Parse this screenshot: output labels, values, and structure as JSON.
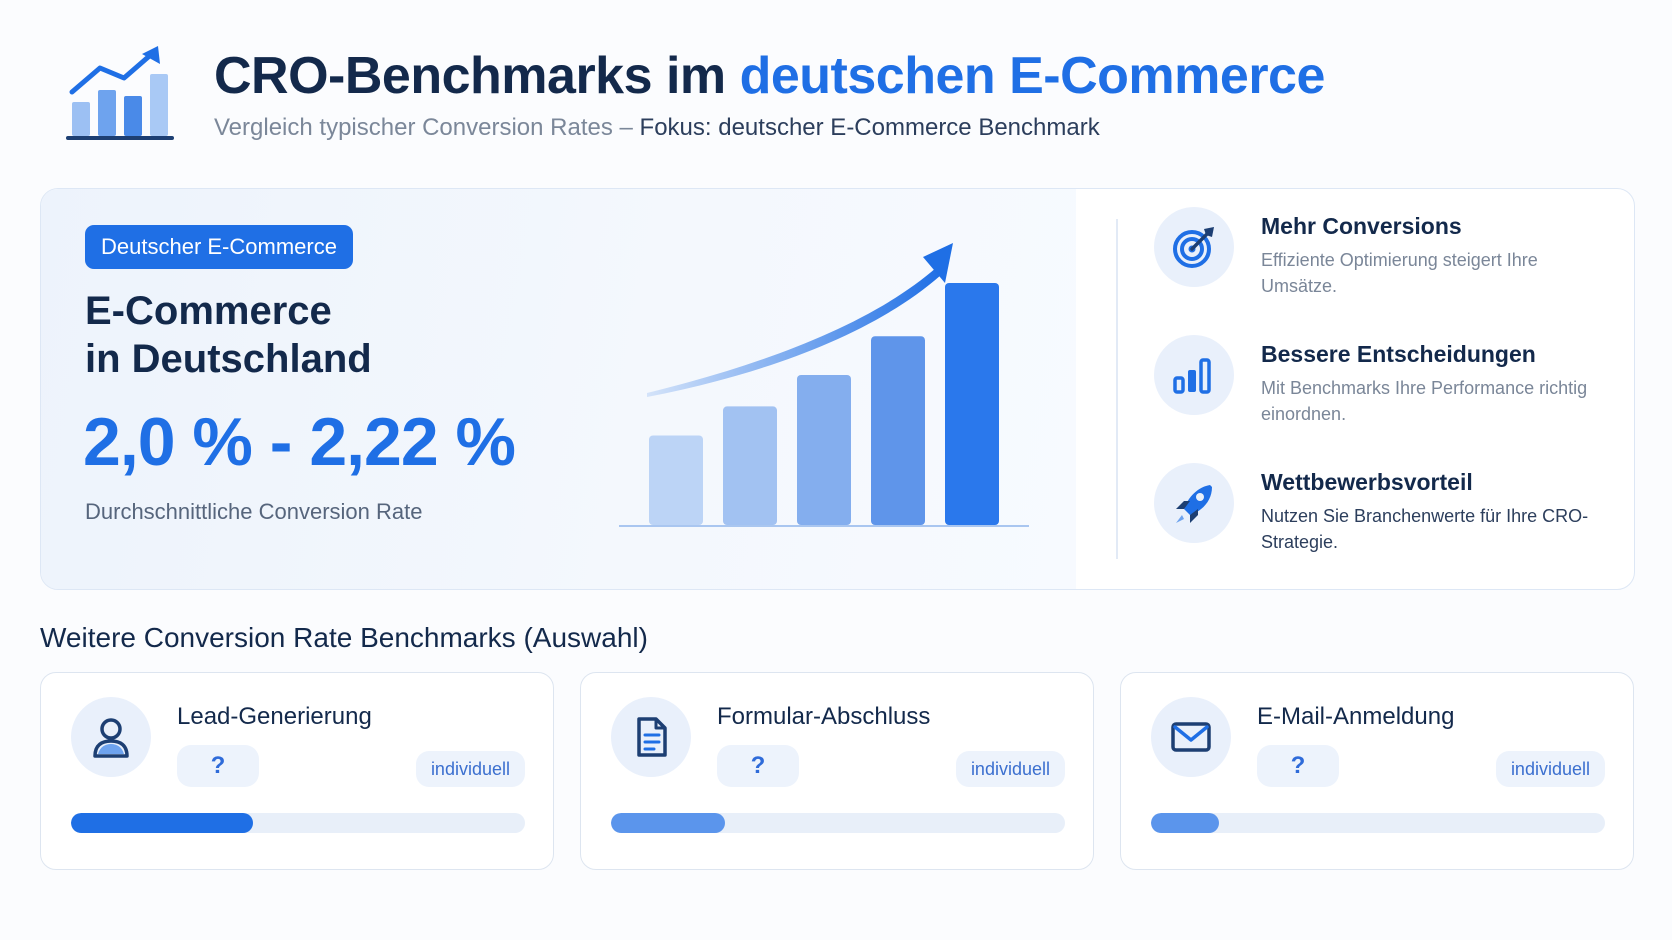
{
  "header": {
    "title_part1": "CRO-Benchmarks im",
    "title_part2": "deutschen E-Commerce",
    "subtitle_part1": "Vergleich typischer Conversion Rates –",
    "subtitle_part2": "Fokus: deutscher E-Commerce Benchmark"
  },
  "hero": {
    "badge": "Deutscher E-Commerce",
    "title_line1": "E-Commerce",
    "title_line2": "in Deutschland",
    "value": "2,0 % - 2,22 %",
    "caption": "Durchschnittliche Conversion Rate"
  },
  "chart_data": {
    "type": "bar",
    "values": [
      37,
      49,
      62,
      78,
      100
    ],
    "colors": [
      "#bcd4f6",
      "#a2c2f2",
      "#84aeee",
      "#5f95ea",
      "#2a78ec"
    ],
    "trend_arrow": true
  },
  "benefits": [
    {
      "icon": "target-icon",
      "title": "Mehr Conversions",
      "text": "Effiziente Optimierung steigert Ihre Umsätze."
    },
    {
      "icon": "bar-chart-icon",
      "title": "Bessere Entscheidungen",
      "text": "Mit Benchmarks Ihre Performance richtig einordnen."
    },
    {
      "icon": "rocket-icon",
      "title": "Wettbewerbsvorteil",
      "text": "Nutzen Sie Branchenwerte für Ihre CRO-Strategie."
    }
  ],
  "section_title": "Weitere Conversion Rate Benchmarks (Auswahl)",
  "cards": [
    {
      "icon": "user-icon",
      "title": "Lead-Generierung",
      "value": "?",
      "tag": "individuell",
      "progress": 0.4,
      "color": "#1f6fe5"
    },
    {
      "icon": "document-icon",
      "title": "Formular-Abschluss",
      "value": "?",
      "tag": "individuell",
      "progress": 0.25,
      "color": "#5b95ec"
    },
    {
      "icon": "mail-icon",
      "title": "E-Mail-Anmeldung",
      "value": "?",
      "tag": "individuell",
      "progress": 0.15,
      "color": "#5b95ec"
    }
  ]
}
